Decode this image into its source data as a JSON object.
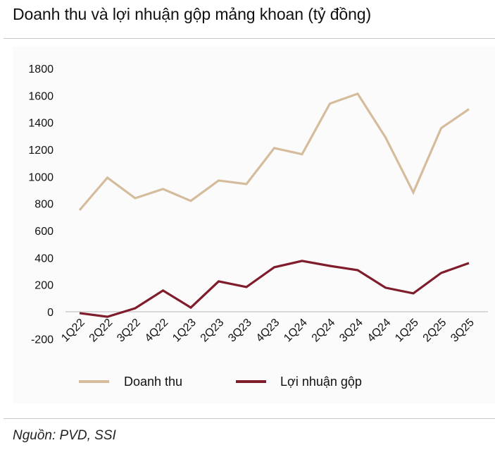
{
  "title": "Doanh thu và lợi nhuận gộp mảng khoan (tỷ đồng)",
  "source": "Nguồn: PVD, SSI",
  "colors": {
    "revenue": "#d4bc9c",
    "profit": "#7f1d2d",
    "zero_line": "#d9d9d9",
    "panel": "#fbfbfb"
  },
  "chart_data": {
    "type": "line",
    "title": "Doanh thu và lợi nhuận gộp mảng khoan (tỷ đồng)",
    "xlabel": "",
    "ylabel": "",
    "ylim": [
      -200,
      1800
    ],
    "yticks": [
      -200,
      0,
      200,
      400,
      600,
      800,
      1000,
      1200,
      1400,
      1600,
      1800
    ],
    "grid": false,
    "legend_position": "bottom",
    "categories": [
      "1Q22",
      "2Q22",
      "3Q22",
      "4Q22",
      "1Q23",
      "2Q23",
      "3Q23",
      "4Q23",
      "1Q24",
      "2Q24",
      "3Q24",
      "4Q24",
      "1Q25",
      "2Q25",
      "3Q25"
    ],
    "series": [
      {
        "name": "Doanh thu",
        "color": "#d4bc9c",
        "values": [
          752,
          992,
          840,
          908,
          820,
          971,
          945,
          1211,
          1165,
          1540,
          1613,
          1290,
          883,
          1358,
          1499
        ]
      },
      {
        "name": "Lợi nhuận gộp",
        "color": "#7f1d2d",
        "values": [
          -10,
          -37,
          26,
          157,
          31,
          225,
          183,
          329,
          376,
          339,
          308,
          178,
          136,
          287,
          360
        ]
      }
    ]
  }
}
